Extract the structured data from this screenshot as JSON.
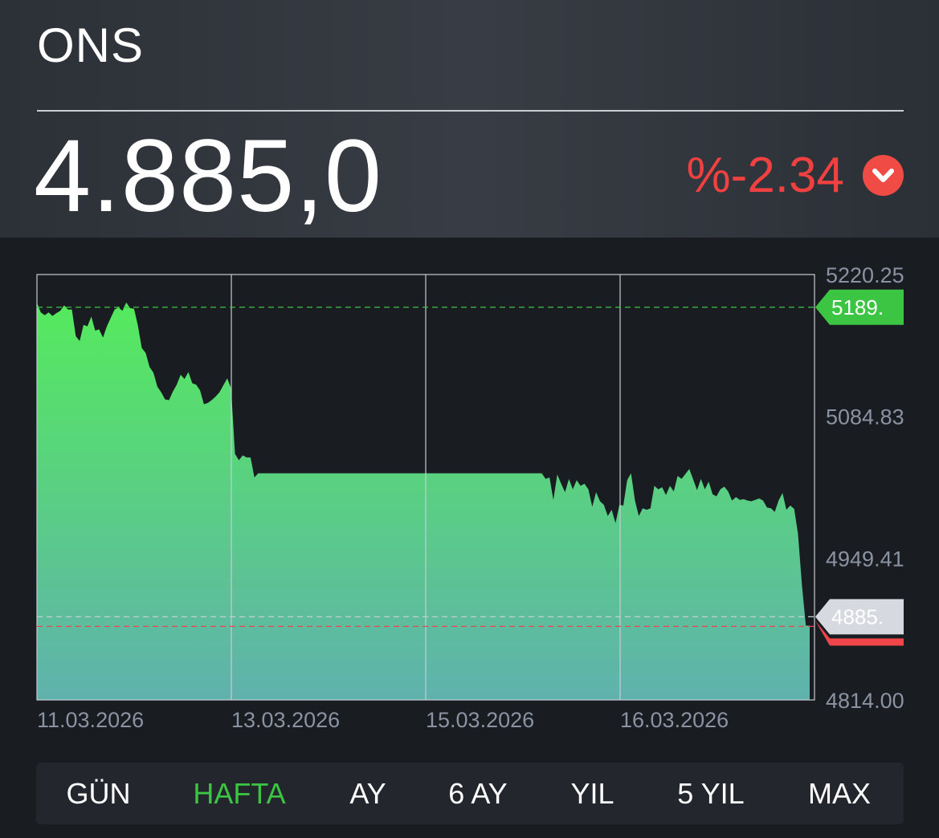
{
  "header": {
    "title": "ONS",
    "price": "4.885,0",
    "change": "%-2.34",
    "change_icon": "chevron-down-circle-icon",
    "change_color": "#f04040"
  },
  "chart_data": {
    "type": "area",
    "ylim": [
      4814.0,
      5220.25
    ],
    "y_tick_labels": [
      "5220.25",
      "5084.83",
      "4949.41",
      "4814.00"
    ],
    "x_tick_labels": [
      "11.03.2026",
      "13.03.2026",
      "15.03.2026",
      "16.03.2026"
    ],
    "high_tag": "5189.",
    "high_value": 5189.0,
    "current_tag": "4885.",
    "current_value": 4885.0,
    "grid": true,
    "series": [
      {
        "values": [
          5193.2,
          5184.1,
          5181.4,
          5184.1,
          5180.7,
          5183.4,
          5185.5,
          5190.8,
          5186.8,
          5186.8,
          5161.4,
          5156.7,
          5172.1,
          5170.7,
          5180.1,
          5166.7,
          5168.0,
          5160.0,
          5170.7,
          5178.8,
          5186.8,
          5188.8,
          5185.5,
          5193.5,
          5188.1,
          5187.5,
          5171.4,
          5150.0,
          5145.3,
          5131.9,
          5126.5,
          5113.1,
          5107.7,
          5101.0,
          5100.3,
          5108.4,
          5115.1,
          5124.5,
          5120.4,
          5127.1,
          5116.4,
          5115.1,
          5109.7,
          5096.3,
          5097.6,
          5100.3,
          5103.7,
          5107.7,
          5114.4,
          5121.1,
          5111.7,
          5049.0,
          5042.9,
          5047.6,
          5045.6,
          5045.6,
          5026.5,
          5030.5,
          5030.5,
          5030.5,
          5030.5,
          5030.5,
          5030.5,
          5030.5,
          5030.5,
          5030.5,
          5030.5,
          5030.5,
          5030.5,
          5030.5,
          5030.5,
          5030.5,
          5030.5,
          5030.5,
          5030.5,
          5030.5,
          5030.5,
          5030.5,
          5030.5,
          5030.5,
          5030.5,
          5030.5,
          5030.5,
          5030.5,
          5030.5,
          5030.5,
          5030.5,
          5030.5,
          5030.5,
          5030.5,
          5030.5,
          5030.5,
          5030.5,
          5030.5,
          5030.5,
          5030.5,
          5030.5,
          5030.5,
          5030.5,
          5030.5,
          5030.5,
          5030.5,
          5030.5,
          5030.5,
          5030.5,
          5030.5,
          5030.5,
          5030.5,
          5030.5,
          5030.5,
          5030.5,
          5030.5,
          5030.5,
          5030.5,
          5030.5,
          5030.5,
          5030.5,
          5030.5,
          5030.5,
          5030.5,
          5030.5,
          5030.5,
          5030.5,
          5030.5,
          5030.5,
          5030.5,
          5030.5,
          5030.5,
          5030.5,
          5030.5,
          5030.5,
          5025.1,
          5026.5,
          5005.1,
          5029.2,
          5020.5,
          5012.4,
          5025.1,
          5015.1,
          5023.8,
          5018.4,
          5020.5,
          5015.1,
          4998.4,
          5012.4,
          5003.7,
          5000.3,
          4989.6,
          4995.6,
          4982.9,
          5000.3,
          4999.7,
          5023.8,
          5030.5,
          5004.4,
          4989.6,
          4997.0,
          4995.6,
          4997.0,
          5018.4,
          5015.1,
          5017.1,
          5009.7,
          5018.4,
          5013.1,
          5027.9,
          5025.1,
          5029.8,
          5034.5,
          5024.5,
          5014.4,
          5025.1,
          5015.1,
          5022.5,
          5010.4,
          5008.4,
          5015.1,
          5017.7,
          5013.1,
          5004.4,
          5007.7,
          5005.1,
          5005.7,
          5004.4,
          5003.7,
          5005.1,
          5006.4,
          5004.4,
          4997.7,
          4997.0,
          4993.6,
          5004.4,
          5011.7,
          4995.6,
          4999.7,
          4996.4,
          4972.3,
          4924.3,
          4885.0,
          4885.0
        ]
      }
    ]
  },
  "tabs": [
    {
      "label": "GÜN",
      "active": false
    },
    {
      "label": "HAFTA",
      "active": true
    },
    {
      "label": "AY",
      "active": false
    },
    {
      "label": "6 AY",
      "active": false
    },
    {
      "label": "YIL",
      "active": false
    },
    {
      "label": "5 YIL",
      "active": false
    },
    {
      "label": "MAX",
      "active": false
    }
  ],
  "colors": {
    "accent_green": "#3cc443",
    "area_top": "#55ea5d",
    "area_bottom": "#5fb2ad",
    "negative_red": "#f04040"
  }
}
